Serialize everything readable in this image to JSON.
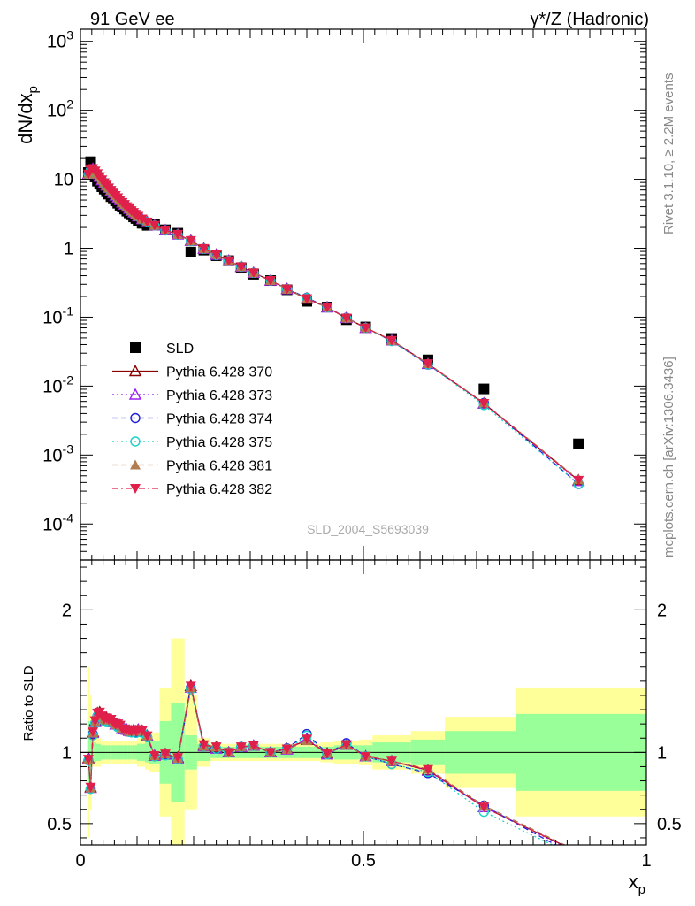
{
  "header": {
    "left_title": "91 GeV ee",
    "right_title": "γ*/Z (Hadronic)"
  },
  "side_text": {
    "rivet": "Rivet 3.1.10, ≥ 2.2M events",
    "mcplots": "mcplots.cern.ch [arXiv:1306.3436]"
  },
  "annotation": "SLD_2004_S5693039",
  "chart_data": [
    {
      "type": "line",
      "panel": "main",
      "ylabel": "dN/dx_p",
      "ylog": true,
      "ylim": [
        3e-05,
        1500
      ],
      "xlim": [
        0,
        1
      ],
      "ytick_labels": [
        "10^-4",
        "10^-3",
        "10^-2",
        "10^-1",
        "1",
        "10",
        "10^2",
        "10^3"
      ],
      "ytick_values": [
        0.0001,
        0.001,
        0.01,
        0.1,
        1,
        10,
        100,
        1000
      ],
      "legend_position": "lower-left",
      "x": [
        0.014,
        0.018,
        0.022,
        0.026,
        0.03,
        0.034,
        0.038,
        0.042,
        0.046,
        0.05,
        0.054,
        0.058,
        0.062,
        0.066,
        0.07,
        0.074,
        0.078,
        0.082,
        0.086,
        0.09,
        0.094,
        0.098,
        0.102,
        0.109,
        0.118,
        0.131,
        0.15,
        0.172,
        0.195,
        0.218,
        0.24,
        0.262,
        0.284,
        0.306,
        0.336,
        0.365,
        0.4,
        0.436,
        0.47,
        0.504,
        0.55,
        0.614,
        0.713,
        0.88
      ],
      "series": [
        {
          "name": "SLD",
          "marker": "filled-square",
          "color": "#000000",
          "values": [
            12.5,
            18.0,
            12.5,
            10.8,
            9.4,
            8.5,
            7.8,
            7.2,
            6.6,
            6.1,
            5.6,
            5.2,
            4.85,
            4.5,
            4.2,
            3.95,
            3.7,
            3.45,
            3.25,
            3.05,
            2.85,
            2.7,
            2.5,
            2.3,
            2.15,
            2.2,
            1.85,
            1.65,
            0.88,
            0.94,
            0.78,
            0.66,
            0.52,
            0.42,
            0.34,
            0.25,
            0.17,
            0.14,
            0.092,
            0.072,
            0.049,
            0.024,
            0.0091,
            0.00145
          ]
        },
        {
          "name": "Pythia 6.428 370",
          "marker": "open-triangle-up",
          "color": "#8b0000",
          "linestyle": "solid",
          "values": [
            12.0,
            13.6,
            14.3,
            13.2,
            12.0,
            10.9,
            9.8,
            8.9,
            8.2,
            7.5,
            6.9,
            6.3,
            5.8,
            5.4,
            5.0,
            4.6,
            4.3,
            4.0,
            3.75,
            3.5,
            3.3,
            3.1,
            2.9,
            2.65,
            2.4,
            2.15,
            1.83,
            1.59,
            1.29,
            0.99,
            0.81,
            0.66,
            0.54,
            0.44,
            0.34,
            0.256,
            0.185,
            0.139,
            0.097,
            0.07,
            0.046,
            0.021,
            0.0056,
            0.00043
          ]
        },
        {
          "name": "Pythia 6.428 373",
          "marker": "open-triangle-up",
          "color": "#9a1ef0",
          "linestyle": "dotted",
          "values": [
            11.9,
            13.5,
            14.2,
            13.1,
            11.9,
            10.8,
            9.7,
            8.9,
            8.1,
            7.5,
            6.9,
            6.3,
            5.8,
            5.4,
            5.0,
            4.6,
            4.3,
            4.0,
            3.74,
            3.5,
            3.3,
            3.1,
            2.9,
            2.64,
            2.4,
            2.15,
            1.82,
            1.58,
            1.28,
            0.98,
            0.8,
            0.66,
            0.54,
            0.44,
            0.34,
            0.255,
            0.186,
            0.138,
            0.097,
            0.07,
            0.046,
            0.0209,
            0.0056,
            0.00042
          ]
        },
        {
          "name": "Pythia 6.428 374",
          "marker": "open-circle",
          "color": "#1f1fdd",
          "linestyle": "dashed",
          "values": [
            11.8,
            13.4,
            14.1,
            13.0,
            11.8,
            10.7,
            9.7,
            8.8,
            8.1,
            7.4,
            6.8,
            6.3,
            5.8,
            5.3,
            4.9,
            4.6,
            4.3,
            4.0,
            3.72,
            3.48,
            3.28,
            3.08,
            2.88,
            2.62,
            2.38,
            2.14,
            1.82,
            1.57,
            1.28,
            0.98,
            0.8,
            0.66,
            0.54,
            0.44,
            0.34,
            0.257,
            0.192,
            0.139,
            0.098,
            0.07,
            0.045,
            0.0205,
            0.0057,
            0.00038
          ]
        },
        {
          "name": "Pythia 6.428 375",
          "marker": "open-circle",
          "color": "#19d3c5",
          "linestyle": "dotted",
          "values": [
            11.8,
            13.4,
            14.0,
            13.0,
            11.8,
            10.7,
            9.7,
            8.8,
            8.0,
            7.4,
            6.8,
            6.3,
            5.8,
            5.3,
            4.9,
            4.6,
            4.3,
            4.0,
            3.72,
            3.48,
            3.27,
            3.07,
            2.88,
            2.62,
            2.38,
            2.14,
            1.81,
            1.57,
            1.27,
            0.98,
            0.8,
            0.66,
            0.54,
            0.44,
            0.34,
            0.256,
            0.19,
            0.138,
            0.097,
            0.07,
            0.045,
            0.0207,
            0.0053,
            0.00038
          ]
        },
        {
          "name": "Pythia 6.428 381",
          "marker": "filled-triangle-up",
          "color": "#b07c50",
          "linestyle": "dashed",
          "values": [
            11.9,
            13.5,
            14.2,
            13.1,
            11.9,
            10.8,
            9.8,
            8.9,
            8.1,
            7.5,
            6.9,
            6.3,
            5.8,
            5.4,
            5.0,
            4.6,
            4.3,
            4.0,
            3.74,
            3.5,
            3.3,
            3.1,
            2.9,
            2.64,
            2.4,
            2.15,
            1.83,
            1.58,
            1.28,
            0.98,
            0.81,
            0.66,
            0.54,
            0.44,
            0.34,
            0.255,
            0.184,
            0.139,
            0.097,
            0.07,
            0.046,
            0.0212,
            0.0057,
            0.00044
          ]
        },
        {
          "name": "Pythia 6.428 382",
          "marker": "filled-triangle-down",
          "color": "#e0204a",
          "linestyle": "dashdot",
          "values": [
            11.9,
            13.6,
            14.3,
            13.2,
            12.0,
            10.9,
            9.8,
            8.9,
            8.2,
            7.5,
            6.9,
            6.3,
            5.8,
            5.4,
            5.0,
            4.6,
            4.3,
            4.0,
            3.75,
            3.5,
            3.3,
            3.1,
            2.9,
            2.65,
            2.4,
            2.15,
            1.83,
            1.59,
            1.29,
            0.99,
            0.81,
            0.66,
            0.54,
            0.44,
            0.34,
            0.256,
            0.186,
            0.139,
            0.097,
            0.07,
            0.046,
            0.0211,
            0.0056,
            0.00043
          ]
        }
      ]
    },
    {
      "type": "line",
      "panel": "ratio",
      "ylabel": "Ratio to SLD",
      "xlabel": "x_p",
      "xlim": [
        0,
        1
      ],
      "ylim": [
        0.35,
        2.35
      ],
      "ytick_labels": [
        "0.5",
        "1",
        "2"
      ],
      "ytick_values": [
        0.5,
        1,
        2
      ],
      "xtick_labels": [
        "0",
        "0.5",
        "1"
      ],
      "xtick_values": [
        0,
        0.5,
        1
      ],
      "bands": {
        "edges": [
          0.012,
          0.016,
          0.02,
          0.024,
          0.028,
          0.032,
          0.036,
          0.04,
          0.044,
          0.048,
          0.052,
          0.056,
          0.06,
          0.064,
          0.068,
          0.072,
          0.076,
          0.08,
          0.084,
          0.088,
          0.092,
          0.096,
          0.1,
          0.104,
          0.114,
          0.122,
          0.14,
          0.16,
          0.184,
          0.206,
          0.23,
          0.25,
          0.274,
          0.294,
          0.318,
          0.354,
          0.376,
          0.424,
          0.448,
          0.492,
          0.516,
          0.584,
          0.644,
          0.77,
          1.0
        ],
        "stat_band": [
          0.22,
          0.2,
          0.06,
          0.07,
          0.06,
          0.06,
          0.05,
          0.05,
          0.05,
          0.05,
          0.05,
          0.05,
          0.05,
          0.05,
          0.05,
          0.05,
          0.05,
          0.05,
          0.05,
          0.05,
          0.05,
          0.05,
          0.06,
          0.06,
          0.07,
          0.08,
          0.22,
          0.35,
          0.12,
          0.06,
          0.04,
          0.04,
          0.04,
          0.04,
          0.04,
          0.04,
          0.04,
          0.04,
          0.05,
          0.05,
          0.07,
          0.09,
          0.15,
          0.27
        ],
        "syst_band": [
          0.6,
          0.4,
          0.1,
          0.1,
          0.1,
          0.1,
          0.08,
          0.08,
          0.08,
          0.08,
          0.08,
          0.08,
          0.08,
          0.08,
          0.08,
          0.08,
          0.08,
          0.08,
          0.08,
          0.08,
          0.08,
          0.08,
          0.1,
          0.1,
          0.12,
          0.14,
          0.45,
          0.8,
          0.4,
          0.1,
          0.06,
          0.06,
          0.06,
          0.06,
          0.06,
          0.06,
          0.06,
          0.07,
          0.08,
          0.09,
          0.12,
          0.15,
          0.25,
          0.45
        ]
      }
    }
  ]
}
